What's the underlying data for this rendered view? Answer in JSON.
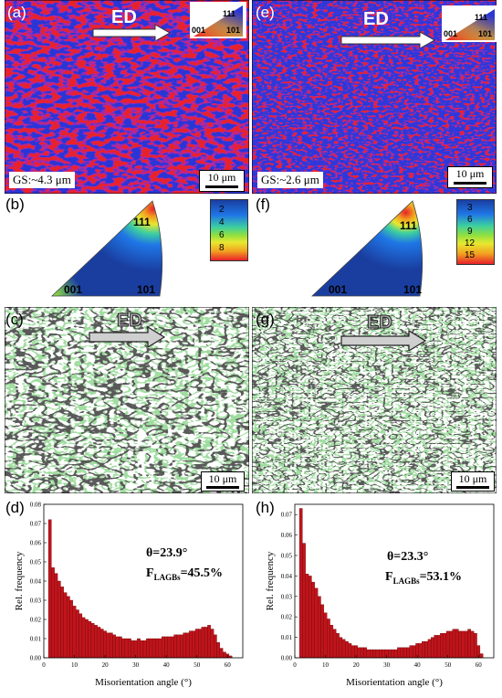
{
  "panels": {
    "a": {
      "label": "(a)",
      "ed": "ED",
      "grain_size": "GS:~4.3 μm",
      "scale": "10 μm",
      "ipf_key": {
        "top": "111",
        "left": "001",
        "right": "101"
      }
    },
    "e": {
      "label": "(e)",
      "ed": "ED",
      "grain_size": "GS:~2.6 μm",
      "scale": "10 μm",
      "ipf_key": {
        "top": "111",
        "left": "001",
        "right": "101"
      }
    },
    "b": {
      "label": "(b)",
      "corners": {
        "top": "111",
        "left": "001",
        "right": "101"
      },
      "colorbar": [
        "2",
        "4",
        "6",
        "8"
      ]
    },
    "f": {
      "label": "(f)",
      "corners": {
        "top": "111",
        "left": "001",
        "right": "101"
      },
      "colorbar": [
        "3",
        "6",
        "9",
        "12",
        "15"
      ]
    },
    "c": {
      "label": "(c)",
      "ed": "ED",
      "scale": "10 μm"
    },
    "g": {
      "label": "(g)",
      "ed": "ED",
      "scale": "10 μm"
    },
    "d": {
      "label": "(d)",
      "theta": "θ=23.9°",
      "f_main": "F",
      "f_sub": "LAGBs",
      "f_val": "=45.5%"
    },
    "h": {
      "label": "(h)",
      "theta": "θ=23.3°",
      "f_main": "F",
      "f_sub": "LAGBs",
      "f_val": "=53.1%"
    }
  },
  "colors": {
    "bar": "#c0141b",
    "bar_edge": "#5a0000",
    "ipf_red": "#e8202a",
    "ipf_blue": "#2b36d6",
    "ipf_green": "#3cd13c",
    "boundary_green": "#5ec85e"
  },
  "chart_data": [
    {
      "type": "bar",
      "panel": "d",
      "xlabel": "Misorientation angle (°)",
      "ylabel": "Rel. frequency",
      "xlim": [
        0,
        65
      ],
      "ylim": [
        0,
        0.08
      ],
      "xticks": [
        "0",
        "10",
        "20",
        "30",
        "40",
        "50",
        "60"
      ],
      "yticks": [
        "0.00",
        "0.01",
        "0.02",
        "0.03",
        "0.04",
        "0.05",
        "0.06",
        "0.07",
        "0.08"
      ],
      "x_start": 2,
      "bin_width": 1,
      "values": [
        0.072,
        0.047,
        0.044,
        0.04,
        0.037,
        0.034,
        0.032,
        0.03,
        0.027,
        0.025,
        0.023,
        0.021,
        0.02,
        0.019,
        0.018,
        0.017,
        0.016,
        0.015,
        0.014,
        0.013,
        0.013,
        0.012,
        0.011,
        0.011,
        0.01,
        0.01,
        0.01,
        0.009,
        0.009,
        0.01,
        0.009,
        0.009,
        0.01,
        0.01,
        0.01,
        0.01,
        0.01,
        0.011,
        0.011,
        0.011,
        0.011,
        0.012,
        0.012,
        0.012,
        0.013,
        0.013,
        0.014,
        0.014,
        0.015,
        0.015,
        0.016,
        0.016,
        0.017,
        0.015,
        0.012,
        0.008,
        0.005,
        0.003,
        0.002,
        0.001
      ]
    },
    {
      "type": "bar",
      "panel": "h",
      "xlabel": "Misorientation angle (°)",
      "ylabel": "Rel. frequency",
      "xlim": [
        0,
        65
      ],
      "ylim": [
        0,
        0.075
      ],
      "xticks": [
        "0",
        "10",
        "20",
        "30",
        "40",
        "50",
        "60"
      ],
      "yticks": [
        "0.00",
        "0.01",
        "0.02",
        "0.03",
        "0.04",
        "0.05",
        "0.06",
        "0.07"
      ],
      "x_start": 2,
      "bin_width": 1,
      "values": [
        0.073,
        0.056,
        0.041,
        0.04,
        0.037,
        0.034,
        0.03,
        0.026,
        0.022,
        0.019,
        0.016,
        0.014,
        0.012,
        0.01,
        0.009,
        0.008,
        0.007,
        0.006,
        0.006,
        0.005,
        0.005,
        0.005,
        0.004,
        0.004,
        0.004,
        0.004,
        0.004,
        0.004,
        0.004,
        0.004,
        0.004,
        0.004,
        0.005,
        0.005,
        0.005,
        0.005,
        0.006,
        0.006,
        0.007,
        0.007,
        0.008,
        0.008,
        0.009,
        0.01,
        0.011,
        0.011,
        0.012,
        0.012,
        0.013,
        0.013,
        0.014,
        0.014,
        0.013,
        0.013,
        0.013,
        0.014,
        0.013,
        0.012,
        0.006,
        0.002
      ]
    }
  ]
}
